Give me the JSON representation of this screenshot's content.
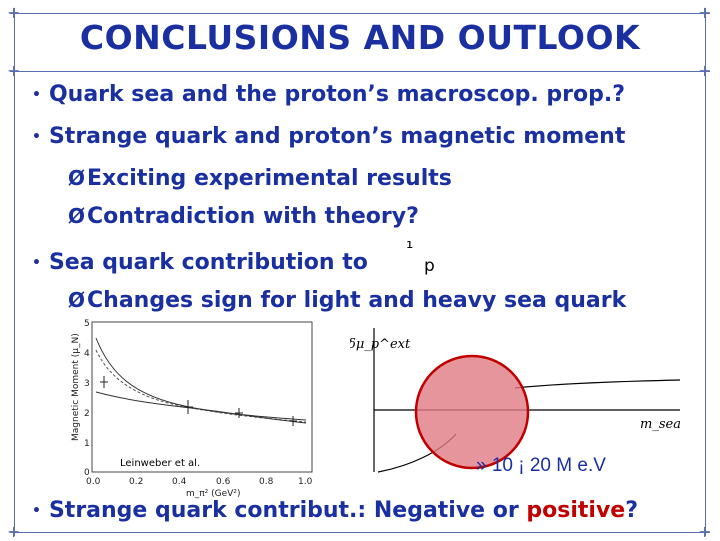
{
  "title": "CONCLUSIONS AND OUTLOOK",
  "bullets": {
    "b1": "Quark sea and the proton’s macroscop. prop.?",
    "b2": "Strange quark and proton’s magnetic moment",
    "s1": "Exciting experimental results",
    "s2": "Contradiction with theory?",
    "b3": "Sea quark contribution to",
    "b3_sym1": "¹",
    "b3_symp": "p",
    "s3": "Changes sign for light and heavy sea quark",
    "b4_pre": "Strange quark contribut.: Negative or ",
    "b4_hl": "positive",
    "b4_post": "?"
  },
  "bullet_symbol": "•",
  "arrow_symbol": "Ø",
  "left_plot": {
    "ylabel": "Magnetic Moment (μ_N)",
    "xlabel": "m_π² (GeV²)",
    "yticks": [
      "0",
      "1",
      "2",
      "3",
      "4",
      "5"
    ],
    "xticks": [
      "0.0",
      "0.2",
      "0.4",
      "0.6",
      "0.8",
      "1.0"
    ],
    "credit": "Leinweber et al."
  },
  "right_plot": {
    "ylabel": "δμ_p^ext",
    "xlabel": "m_sea",
    "annotation": "» 10 ¡ 20 M e.V"
  },
  "colors": {
    "title": "#1a2fa0",
    "text": "#1a2fa0",
    "highlight": "#c00000",
    "frame": "#5a6fb0",
    "circle_fill": "#e07a84",
    "circle_stroke": "#c00000"
  }
}
